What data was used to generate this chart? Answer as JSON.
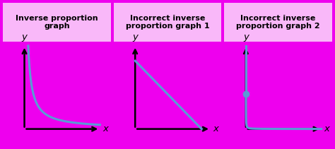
{
  "title1": "Inverse proportion\ngraph",
  "title2": "Incorrect inverse\nproportion graph 1",
  "title3": "Incorrect inverse\nproportion graph 2",
  "border_color": "#ee00ee",
  "header_bg": "#f9b8f9",
  "panel_bg": "#ffffff",
  "curve_color": "#5b9bd5",
  "dot_color": "#5b9bd5",
  "axis_color": "#000000",
  "text_color": "#000000",
  "title_fontsize": 8.0,
  "label_fontsize": 9.5,
  "fig_width": 4.74,
  "fig_height": 2.11,
  "dpi": 100
}
